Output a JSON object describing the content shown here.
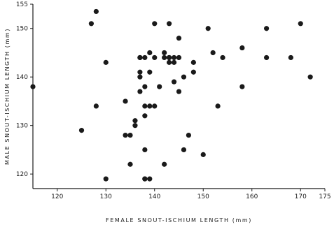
{
  "chart_data": {
    "type": "scatter",
    "title": "",
    "xlabel": "FEMALE SNOUT-ISCHIUM LENGTH (mm)",
    "ylabel": "MALE SNOUT-ISCHIUM LENGTH (mm)",
    "xlim": [
      115,
      175
    ],
    "ylim": [
      117,
      155
    ],
    "xticks": [
      120,
      130,
      140,
      150,
      160,
      170,
      175
    ],
    "yticks": [
      120,
      130,
      140,
      150,
      155
    ],
    "grid": false,
    "legend": "none",
    "point_color": "#1a1a1a",
    "series": [
      {
        "x": [
          115,
          125,
          127,
          128,
          128,
          130,
          130,
          134,
          134,
          135,
          135,
          136,
          136,
          137,
          137,
          137,
          137,
          137,
          138,
          138,
          138,
          138,
          138,
          138,
          138,
          139,
          139,
          139,
          139,
          140,
          140,
          140,
          141,
          142,
          142,
          142,
          143,
          143,
          143,
          143,
          144,
          144,
          144,
          145,
          145,
          145,
          146,
          146,
          147,
          148,
          148,
          150,
          151,
          152,
          153,
          154,
          158,
          158,
          163,
          163,
          168,
          170,
          172
        ],
        "y": [
          138,
          129,
          151,
          153.5,
          134,
          143,
          119,
          135,
          128,
          128,
          122,
          131,
          130,
          141,
          140,
          144,
          137,
          144,
          134,
          144,
          138,
          132,
          125,
          119,
          119,
          141,
          134,
          119,
          145,
          151,
          134,
          144,
          138,
          145,
          144,
          122,
          144,
          143,
          151,
          144,
          143,
          144,
          139,
          148,
          137,
          144,
          140,
          125,
          128,
          143,
          141,
          124,
          150,
          145,
          134,
          144,
          146,
          138,
          150,
          144,
          144,
          151,
          140
        ]
      }
    ]
  }
}
